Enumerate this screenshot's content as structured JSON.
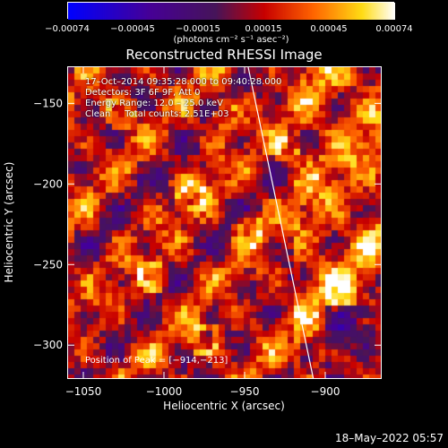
{
  "chart_data": {
    "type": "heatmap",
    "title": "Reconstructed RHESSI Image",
    "xlabel": "Heliocentric X (arcsec)",
    "ylabel": "Heliocentric Y (arcsec)",
    "xlim": [
      -1060,
      -865
    ],
    "ylim": [
      -321,
      -127
    ],
    "x_ticks": [
      -1050,
      -1000,
      -950,
      -900
    ],
    "y_ticks": [
      -150,
      -200,
      -250,
      -300
    ],
    "x_tick_labels": [
      "−1050",
      "−1000",
      "−950",
      "−900"
    ],
    "y_tick_labels": [
      "−150",
      "−200",
      "−250",
      "−300"
    ],
    "colorbar": {
      "ticks": [
        "−0.00074",
        "−0.00045",
        "−0.00015",
        "0.00015",
        "0.00045",
        "0.00074"
      ],
      "min": -0.00074,
      "max": 0.00074,
      "unit": "(photons cm⁻² s⁻¹ asec⁻²)"
    },
    "annotations": {
      "time": "17–Oct–2014 09:35:28.000 to 09:40:28.000",
      "detectors": "Detectors: 3F 6F 9F, Att 0",
      "energy": "Energy Range: 12.0 – 25.0 keV",
      "method": "Clean     Total counts: 2.51E+03",
      "peak": "Position of Peak = [−914,−213]"
    },
    "peak_position": [
      -914,
      -213
    ]
  },
  "footer": {
    "timestamp": "18–May–2022 05:57"
  },
  "colors": {
    "background": "#000000",
    "limb": "#ffffff",
    "text": "#ffffff"
  }
}
